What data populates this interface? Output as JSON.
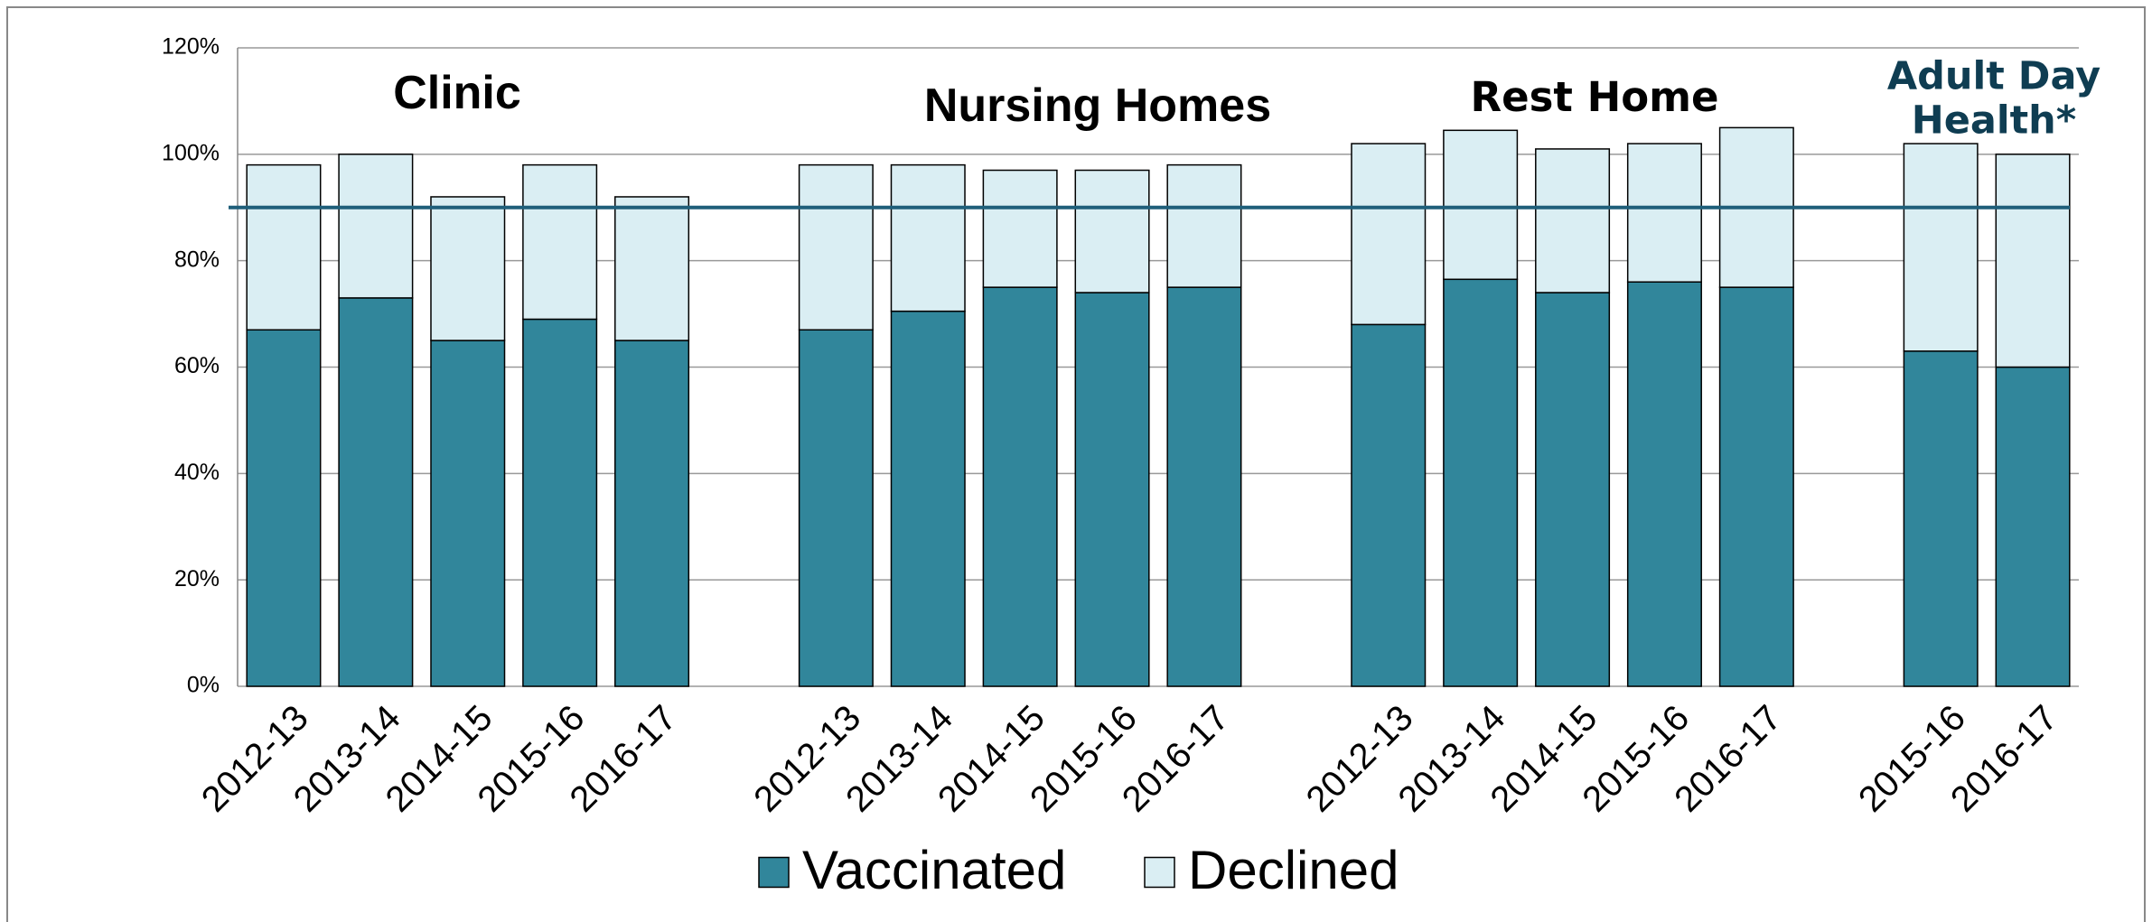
{
  "chart_data": {
    "type": "stacked_bar",
    "categories": [
      "2012-13",
      "2013-14",
      "2014-15",
      "2015-16",
      "2016-17",
      null,
      "2012-13",
      "2013-14",
      "2014-15",
      "2015-16",
      "2016-17",
      null,
      "2012-13",
      "2013-14",
      "2014-15",
      "2015-16",
      "2016-17",
      null,
      "2015-16",
      "2016-17"
    ],
    "series": [
      {
        "name": "Vaccinated",
        "color": "#31869b",
        "values": [
          67,
          73,
          65,
          69,
          65,
          null,
          67,
          70.5,
          75,
          74,
          75,
          null,
          68,
          76.5,
          74,
          76,
          75,
          null,
          63,
          60
        ]
      },
      {
        "name": "Declined",
        "color": "#daeef3",
        "values": [
          31,
          27,
          27,
          29,
          27,
          null,
          31,
          27.5,
          22,
          23,
          23,
          null,
          34,
          28,
          27,
          26,
          30,
          null,
          39,
          40
        ]
      }
    ],
    "annotations": [
      "Clinic",
      "Nursing Homes",
      "Rest Home",
      "Adult Day Health*"
    ],
    "reference_line": {
      "value": 90,
      "color": "#1f5f7a"
    },
    "ylim": [
      0,
      120
    ],
    "yticks": [
      {
        "value": 0,
        "label": "0%"
      },
      {
        "value": 20,
        "label": "20%"
      },
      {
        "value": 40,
        "label": "40%"
      },
      {
        "value": 60,
        "label": "60%"
      },
      {
        "value": 80,
        "label": "80%"
      },
      {
        "value": 100,
        "label": "100%"
      },
      {
        "value": 120,
        "label": "120%"
      }
    ],
    "grid": true,
    "legend": "bottom"
  }
}
